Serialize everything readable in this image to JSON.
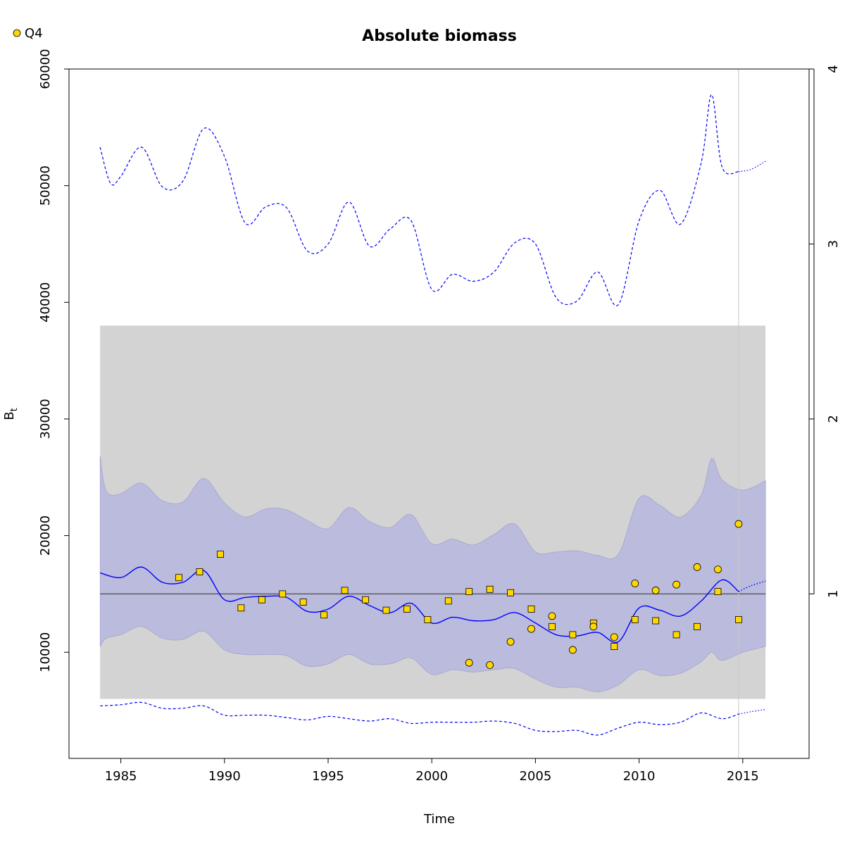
{
  "chart_data": {
    "type": "line",
    "title": "Absolute biomass",
    "xlabel": "Time",
    "ylabel": "B",
    "ylabel_subscript": "t",
    "xlim": [
      1982.5,
      2018.2
    ],
    "ylim": [
      900,
      60000
    ],
    "right_axis": {
      "ticks": [
        1,
        2,
        3,
        4
      ],
      "ref_value": 15000
    },
    "x_ticks": [
      1985,
      1990,
      1995,
      2000,
      2005,
      2010,
      2015
    ],
    "y_ticks": [
      10000,
      20000,
      30000,
      40000,
      50000,
      60000
    ],
    "legend": {
      "label": "Q4",
      "position": "top-left",
      "marker": "circle",
      "color": "#FFD700"
    },
    "colors": {
      "main": "#0000FF",
      "ribbon": "#BBBBDD",
      "ribbon_edge": "#9999CC",
      "band": "#D3D3D3",
      "marker": "#FFD700",
      "ref_line": "#555555",
      "vline": "#C8C8C8"
    },
    "reference_band": {
      "x": [
        1984.0,
        2016.1
      ],
      "y": [
        6000,
        38000
      ]
    },
    "reference_line": {
      "y": 15000,
      "x": [
        1984.0,
        2016.1
      ]
    },
    "vertical_line_x": 2014.8,
    "estimate": {
      "x": [
        1984,
        1985,
        1986,
        1987,
        1988,
        1989,
        1990,
        1991,
        1992,
        1993,
        1994,
        1995,
        1996,
        1997,
        1998,
        1999,
        2000,
        2001,
        2002,
        2003,
        2004,
        2005,
        2006,
        2007,
        2008,
        2009,
        2010,
        2011,
        2012,
        2013,
        2014,
        2014.8
      ],
      "y": [
        16800,
        16400,
        17300,
        16000,
        16000,
        17000,
        14500,
        14700,
        14800,
        14700,
        13500,
        13700,
        14800,
        14000,
        13400,
        14200,
        12500,
        13000,
        12700,
        12800,
        13400,
        12500,
        11500,
        11400,
        11700,
        10900,
        13800,
        13600,
        13100,
        14400,
        16200,
        15200
      ]
    },
    "estimate_forecast": {
      "x": [
        2014.8,
        2015.4,
        2016.1
      ],
      "y": [
        15200,
        15700,
        16100
      ]
    },
    "ci_upper_ribbon": {
      "x": [
        1984,
        1984.3,
        1985,
        1986,
        1987,
        1988,
        1989,
        1990,
        1991,
        1992,
        1993,
        1994,
        1995,
        1996,
        1997,
        1998,
        1999,
        2000,
        2001,
        2002,
        2003,
        2004,
        2005,
        2006,
        2007,
        2008,
        2009,
        2010,
        2011,
        2012,
        2013,
        2013.5,
        2014,
        2015,
        2016.1
      ],
      "y": [
        26800,
        23800,
        23600,
        24500,
        23000,
        22900,
        24900,
        22800,
        21600,
        22300,
        22200,
        21300,
        20600,
        22400,
        21200,
        20700,
        21800,
        19300,
        19700,
        19200,
        20100,
        21000,
        18600,
        18600,
        18700,
        18300,
        18400,
        23200,
        22600,
        21600,
        23500,
        26600,
        24800,
        23900,
        24700
      ]
    },
    "ci_lower_ribbon": {
      "x": [
        1984,
        1984.3,
        1985,
        1986,
        1987,
        1988,
        1989,
        1990,
        1991,
        1992,
        1993,
        1994,
        1995,
        1996,
        1997,
        1998,
        1999,
        2000,
        2001,
        2002,
        2003,
        2004,
        2005,
        2006,
        2007,
        2008,
        2009,
        2010,
        2011,
        2012,
        2013,
        2013.5,
        2014,
        2015,
        2016.1
      ],
      "y": [
        10500,
        11200,
        11500,
        12200,
        11200,
        11100,
        11800,
        10200,
        9800,
        9800,
        9700,
        8800,
        9000,
        9800,
        9000,
        9000,
        9500,
        8100,
        8500,
        8300,
        8500,
        8600,
        7700,
        7000,
        7000,
        6600,
        7200,
        8500,
        8000,
        8200,
        9200,
        10000,
        9300,
        10000,
        10500
      ]
    },
    "ci_upper_dashed": {
      "x": [
        1984,
        1984.5,
        1985,
        1986,
        1987,
        1988,
        1989,
        1990,
        1991,
        1992,
        1993,
        1994,
        1995,
        1996,
        1997,
        1998,
        1999,
        2000,
        2001,
        2002,
        2003,
        2004,
        2005,
        2006,
        2007,
        2008,
        2009,
        2010,
        2011,
        2012,
        2013,
        2013.5,
        2014,
        2014.8
      ],
      "y": [
        53300,
        50200,
        50800,
        53300,
        49900,
        50400,
        54900,
        52500,
        46800,
        48200,
        48100,
        44400,
        45000,
        48600,
        44800,
        46300,
        47000,
        41100,
        42400,
        41800,
        42600,
        45100,
        45000,
        40400,
        40100,
        42600,
        39800,
        47000,
        49600,
        46700,
        52000,
        57800,
        51600,
        51200
      ]
    },
    "ci_upper_forecast": {
      "x": [
        2014.8,
        2015.4,
        2016.1
      ],
      "y": [
        51200,
        51400,
        52100
      ]
    },
    "ci_lower_dashed": {
      "x": [
        1984,
        1985,
        1986,
        1987,
        1988,
        1989,
        1990,
        1991,
        1992,
        1993,
        1994,
        1995,
        1996,
        1997,
        1998,
        1999,
        2000,
        2001,
        2002,
        2003,
        2004,
        2005,
        2006,
        2007,
        2008,
        2009,
        2010,
        2011,
        2012,
        2013,
        2014,
        2014.8
      ],
      "y": [
        5400,
        5500,
        5700,
        5200,
        5200,
        5400,
        4600,
        4600,
        4600,
        4400,
        4200,
        4500,
        4300,
        4100,
        4300,
        3900,
        4000,
        4000,
        4000,
        4100,
        3900,
        3300,
        3200,
        3300,
        2900,
        3500,
        4000,
        3800,
        4000,
        4800,
        4300,
        4700
      ]
    },
    "ci_lower_forecast": {
      "x": [
        2014.8,
        2015.4,
        2016.1
      ],
      "y": [
        4700,
        4900,
        5100
      ]
    },
    "observations_squares": {
      "x": [
        1987.8,
        1988.8,
        1989.8,
        1990.8,
        1991.8,
        1992.8,
        1993.8,
        1994.8,
        1995.8,
        1996.8,
        1997.8,
        1998.8,
        1999.8,
        2000.8,
        2001.8,
        2002.8,
        2003.8,
        2004.8,
        2005.8,
        2006.8,
        2007.8,
        2008.8,
        2009.8,
        2010.8,
        2011.8,
        2012.8,
        2013.8,
        2014.8
      ],
      "y": [
        16400,
        16900,
        18400,
        13800,
        14500,
        15000,
        14300,
        13200,
        15300,
        14500,
        13600,
        13700,
        12800,
        14400,
        15200,
        15400,
        15100,
        13700,
        12200,
        11500,
        12500,
        10500,
        12800,
        12700,
        11500,
        12200,
        15200,
        12800
      ]
    },
    "observations_circles": {
      "name": "Q4",
      "x": [
        2001.8,
        2002.8,
        2003.8,
        2004.8,
        2005.8,
        2006.8,
        2007.8,
        2008.8,
        2009.8,
        2010.8,
        2011.8,
        2012.8,
        2013.8,
        2014.8
      ],
      "y": [
        9100,
        8900,
        10900,
        12000,
        13100,
        10200,
        12200,
        11300,
        15900,
        15300,
        15800,
        17300,
        17100,
        21000
      ]
    }
  }
}
